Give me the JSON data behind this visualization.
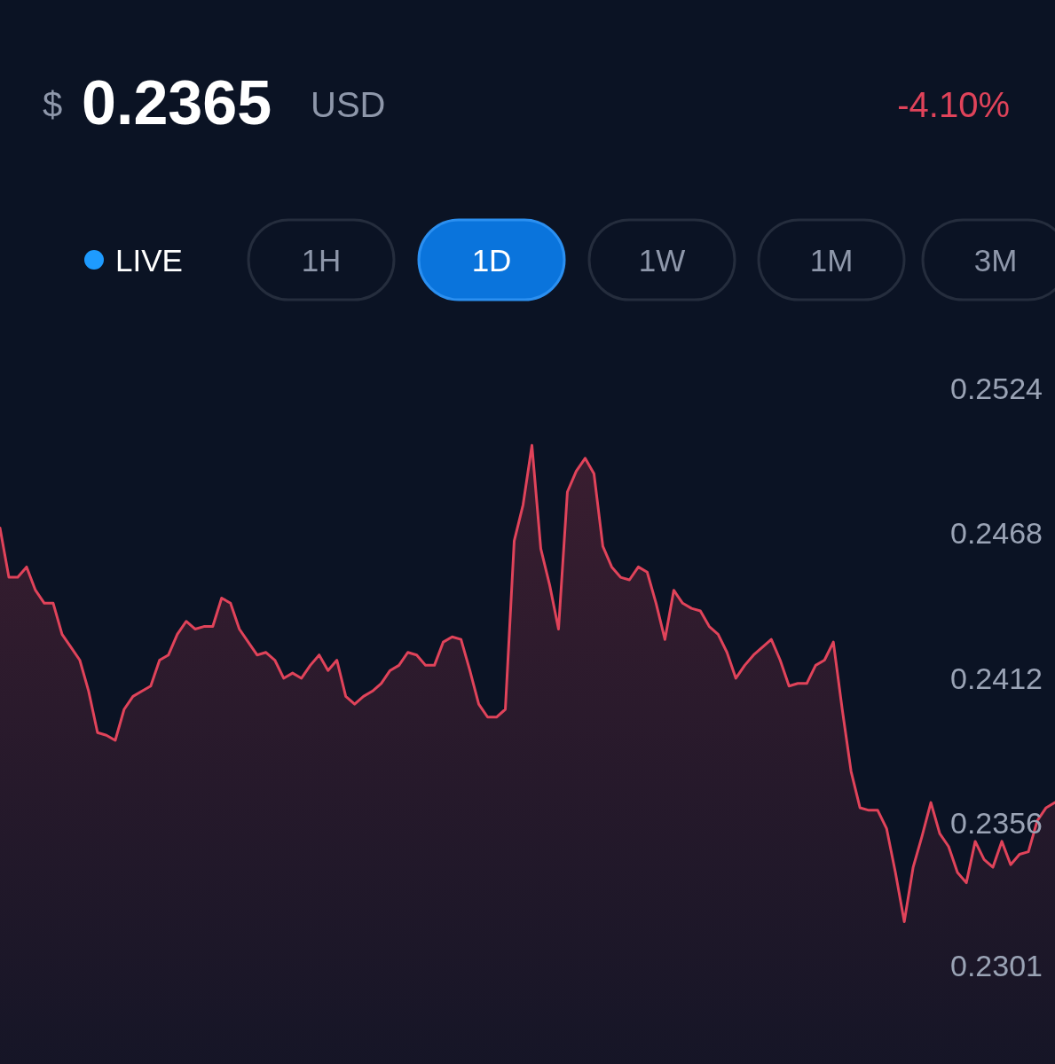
{
  "chart_data": {
    "type": "area",
    "title": "0.2365",
    "annotations": [
      "$",
      "USD",
      "-4.10%",
      "LIVE",
      "1H",
      "1D",
      "1W",
      "1M",
      "3M"
    ],
    "categories": [
      null,
      null,
      null,
      null,
      null,
      null,
      null,
      null,
      null,
      null,
      null,
      null,
      null,
      null,
      null,
      null,
      null,
      null,
      null,
      null,
      null,
      null,
      null,
      null,
      null,
      null,
      null,
      null,
      null,
      null,
      null,
      null,
      null,
      null,
      null,
      null,
      null,
      null,
      null,
      null,
      null,
      null,
      null,
      null,
      null,
      null,
      null,
      null,
      null,
      null,
      null,
      null,
      null,
      null,
      null,
      null,
      null,
      null,
      null,
      null,
      null,
      null,
      null,
      null,
      null,
      null,
      null,
      null,
      null,
      null,
      null,
      null,
      null,
      null,
      null,
      null,
      null,
      null,
      null,
      null,
      null,
      null,
      null,
      null,
      null,
      null,
      null,
      null,
      null,
      null,
      null,
      null,
      null,
      null,
      null,
      null,
      null,
      null,
      null,
      null,
      null,
      null,
      null,
      null,
      null,
      null,
      null,
      null,
      null,
      null,
      null,
      null,
      null,
      null,
      null,
      null,
      null,
      null,
      null,
      null
    ],
    "series": [
      {
        "color": "#e0435a",
        "values": [
          0.247,
          0.2451,
          0.2451,
          0.2455,
          0.2446,
          0.2441,
          0.2441,
          0.2429,
          0.2424,
          0.2419,
          0.2407,
          0.2391,
          0.239,
          0.2388,
          0.24,
          0.2405,
          0.2407,
          0.2409,
          0.2419,
          0.2421,
          0.2429,
          0.2434,
          0.2431,
          0.2432,
          0.2432,
          0.2443,
          0.2441,
          0.2431,
          0.2426,
          0.2421,
          0.2422,
          0.2419,
          0.2412,
          0.2414,
          0.2412,
          0.2417,
          0.2421,
          0.2415,
          0.2419,
          0.2405,
          0.2402,
          0.2405,
          0.2407,
          0.241,
          0.2415,
          0.2417,
          0.2422,
          0.2421,
          0.2417,
          0.2417,
          0.2426,
          0.2428,
          0.2427,
          0.2415,
          0.2402,
          0.2397,
          0.2397,
          0.24,
          0.2465,
          0.2479,
          0.2502,
          0.2462,
          0.2448,
          0.2431,
          0.2484,
          0.2492,
          0.2497,
          0.2491,
          0.2463,
          0.2455,
          0.2451,
          0.245,
          0.2455,
          0.2453,
          0.2441,
          0.2427,
          0.2446,
          0.2441,
          0.2439,
          0.2438,
          0.2432,
          0.2429,
          0.2422,
          0.2412,
          0.2417,
          0.2421,
          0.2424,
          0.2427,
          0.2419,
          0.2409,
          0.241,
          0.241,
          0.2417,
          0.2419,
          0.2426,
          0.24,
          0.2376,
          0.2362,
          0.2361,
          0.2361,
          0.2354,
          0.2337,
          0.2318,
          0.2339,
          0.2351,
          0.2364,
          0.2352,
          0.2347,
          0.2337,
          0.2333,
          0.2349,
          0.2342,
          0.2339,
          0.2349,
          0.234,
          0.2344,
          0.2345,
          0.2357,
          0.2362,
          0.2364
        ]
      }
    ],
    "ylim": [
      0.2263,
      0.2537
    ],
    "yticks": [
      0.2524,
      0.2468,
      0.2412,
      0.2356,
      0.2301
    ],
    "grid": false
  }
}
